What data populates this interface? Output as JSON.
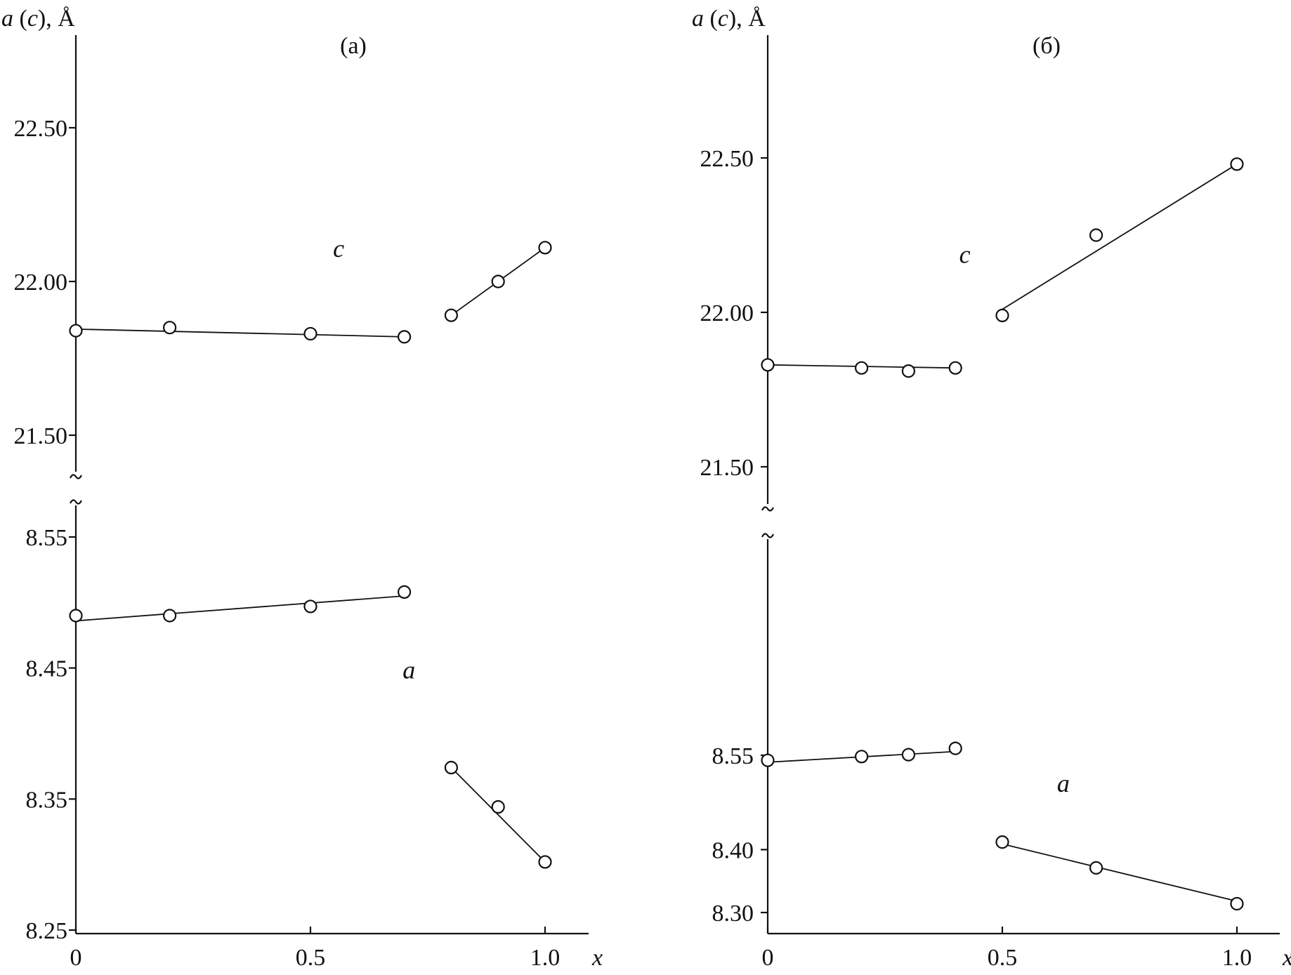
{
  "chart_data": [
    {
      "type": "scatter",
      "panel_label": "(а)",
      "ylabel_parts": [
        "a",
        " (",
        "c",
        "), Å"
      ],
      "xlabel": "x",
      "xlim": [
        0,
        1.0
      ],
      "x_ticks": [
        {
          "value": 0,
          "label": "0"
        },
        {
          "value": 0.5,
          "label": "0.5"
        },
        {
          "value": 1.0,
          "label": "1.0"
        }
      ],
      "broken_y_axis": true,
      "upper_ylim": [
        21.35,
        22.85
      ],
      "upper_ticks": [
        {
          "value": 21.5,
          "label": "21.50"
        },
        {
          "value": 22.0,
          "label": "22.00"
        },
        {
          "value": 22.5,
          "label": "22.50"
        }
      ],
      "lower_ylim": [
        8.25,
        8.57
      ],
      "lower_ticks": [
        {
          "value": 8.25,
          "label": "8.25"
        },
        {
          "value": 8.35,
          "label": "8.35"
        },
        {
          "value": 8.45,
          "label": "8.45"
        },
        {
          "value": 8.55,
          "label": "8.55"
        }
      ],
      "series": [
        {
          "name": "c",
          "axis": "upper",
          "label_pos": [
            0.56,
            22.08
          ],
          "groups": [
            {
              "x": [
                0,
                0.2,
                0.5,
                0.7
              ],
              "y": [
                21.84,
                21.85,
                21.83,
                21.82
              ],
              "fit": [
                [
                  0,
                  21.845
                ],
                [
                  0.7,
                  21.82
                ]
              ]
            },
            {
              "x": [
                0.8,
                0.9,
                1.0
              ],
              "y": [
                21.89,
                22.0,
                22.11
              ],
              "fit": [
                [
                  0.8,
                  21.89
                ],
                [
                  1.0,
                  22.11
                ]
              ]
            }
          ]
        },
        {
          "name": "a",
          "axis": "lower",
          "label_pos": [
            0.71,
            8.442
          ],
          "groups": [
            {
              "x": [
                0,
                0.2,
                0.5,
                0.7
              ],
              "y": [
                8.49,
                8.49,
                8.497,
                8.508
              ],
              "fit": [
                [
                  0,
                  8.486
                ],
                [
                  0.7,
                  8.505
                ]
              ]
            },
            {
              "x": [
                0.8,
                0.9,
                1.0
              ],
              "y": [
                8.374,
                8.344,
                8.302
              ],
              "fit": [
                [
                  0.8,
                  8.374
                ],
                [
                  1.0,
                  8.302
                ]
              ]
            }
          ]
        }
      ]
    },
    {
      "type": "scatter",
      "panel_label": "(б)",
      "ylabel_parts": [
        "a",
        " (",
        "c",
        "), Å"
      ],
      "xlabel": "x",
      "xlim": [
        0,
        1.0
      ],
      "x_ticks": [
        {
          "value": 0,
          "label": "0"
        },
        {
          "value": 0.5,
          "label": "0.5"
        },
        {
          "value": 1.0,
          "label": "1.0"
        }
      ],
      "broken_y_axis": true,
      "upper_ylim": [
        21.35,
        22.85
      ],
      "upper_ticks": [
        {
          "value": 21.5,
          "label": "21.50"
        },
        {
          "value": 22.0,
          "label": "22.00"
        },
        {
          "value": 22.5,
          "label": "22.50"
        }
      ],
      "lower_ylim": [
        8.3,
        8.63
      ],
      "lower_ticks": [
        {
          "value": 8.3,
          "label": "8.30"
        },
        {
          "value": 8.4,
          "label": "8.40"
        },
        {
          "value": 8.55,
          "label": "8.55"
        }
      ],
      "series": [
        {
          "name": "c",
          "axis": "upper",
          "label_pos": [
            0.42,
            22.16
          ],
          "groups": [
            {
              "x": [
                0,
                0.2,
                0.3,
                0.4
              ],
              "y": [
                21.83,
                21.82,
                21.81,
                21.82
              ],
              "fit": [
                [
                  0,
                  21.83
                ],
                [
                  0.4,
                  21.82
                ]
              ]
            },
            {
              "x": [
                0.5,
                0.7,
                1.0
              ],
              "y": [
                21.99,
                22.25,
                22.48
              ],
              "fit": [
                [
                  0.5,
                  22.01
                ],
                [
                  1.0,
                  22.48
                ]
              ]
            }
          ]
        },
        {
          "name": "a",
          "axis": "lower",
          "label_pos": [
            0.63,
            8.492
          ],
          "groups": [
            {
              "x": [
                0,
                0.2,
                0.3,
                0.4
              ],
              "y": [
                8.542,
                8.548,
                8.551,
                8.561
              ],
              "fit": [
                [
                  0,
                  8.539
                ],
                [
                  0.4,
                  8.556
                ]
              ]
            },
            {
              "x": [
                0.5,
                0.7,
                1.0
              ],
              "y": [
                8.412,
                8.371,
                8.314
              ],
              "fit": [
                [
                  0.5,
                  8.409
                ],
                [
                  1.0,
                  8.318
                ]
              ]
            }
          ]
        }
      ]
    }
  ]
}
